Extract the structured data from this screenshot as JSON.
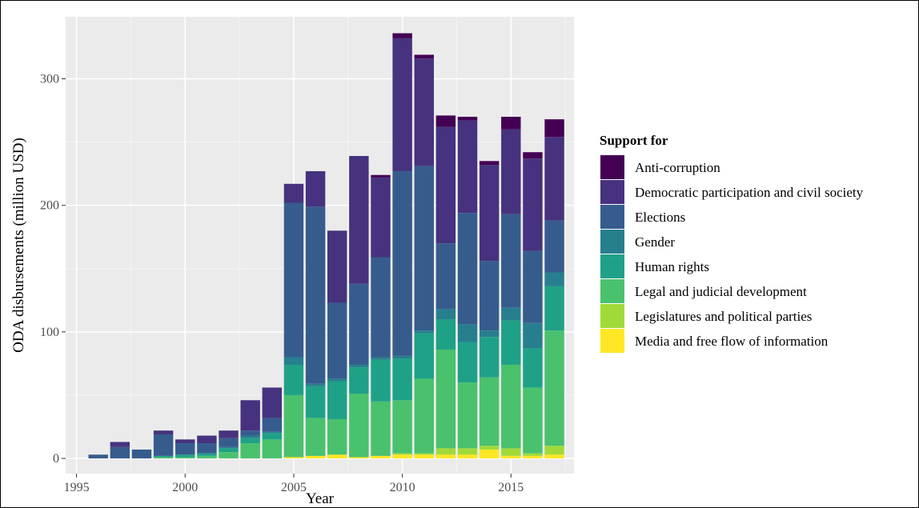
{
  "chart_data": {
    "type": "bar",
    "stacked": true,
    "xlabel": "Year",
    "ylabel": "ODA disbursements (million USD)",
    "x_ticks": [
      1995,
      2000,
      2005,
      2010,
      2015
    ],
    "y_ticks": [
      0,
      100,
      200,
      300
    ],
    "xlim": [
      1994.5,
      2017.9
    ],
    "ylim": [
      -12,
      349
    ],
    "grid": true,
    "panel_background": "#ebebeb",
    "legend": {
      "title": "Support for",
      "placement": "right"
    },
    "categories": [
      1996,
      1997,
      1998,
      1999,
      2000,
      2001,
      2002,
      2003,
      2004,
      2005,
      2006,
      2007,
      2008,
      2009,
      2010,
      2011,
      2012,
      2013,
      2014,
      2015,
      2016,
      2017
    ],
    "series": [
      {
        "name": "Media and free flow of information",
        "color": "#fde725",
        "values": [
          0,
          0,
          0,
          0,
          0,
          0,
          0,
          0,
          0,
          1,
          2,
          3,
          1,
          2,
          3,
          3,
          3,
          3,
          7,
          2,
          2,
          3
        ]
      },
      {
        "name": "Legislatures and political parties",
        "color": "#a0da39",
        "values": [
          0,
          0,
          0,
          0,
          0,
          0,
          0,
          0,
          0,
          0,
          0,
          0,
          0,
          0,
          1,
          1,
          5,
          5,
          3,
          6,
          2,
          7
        ]
      },
      {
        "name": "Legal and judicial development",
        "color": "#4ac16d",
        "values": [
          0,
          0,
          0,
          1,
          1,
          2,
          5,
          12,
          15,
          49,
          30,
          28,
          50,
          43,
          42,
          59,
          78,
          52,
          54,
          66,
          52,
          91
        ]
      },
      {
        "name": "Human rights",
        "color": "#1fa187",
        "values": [
          0,
          0,
          0,
          1,
          2,
          2,
          3,
          4,
          5,
          24,
          25,
          30,
          21,
          33,
          33,
          36,
          24,
          32,
          32,
          35,
          31,
          35
        ]
      },
      {
        "name": "Gender",
        "color": "#277f8e",
        "values": [
          0,
          0,
          0,
          0,
          0,
          0,
          1,
          2,
          1,
          6,
          2,
          2,
          2,
          2,
          2,
          2,
          8,
          14,
          5,
          10,
          20,
          11
        ]
      },
      {
        "name": "Elections",
        "color": "#365c8d",
        "values": [
          3,
          9,
          7,
          17,
          9,
          8,
          7,
          4,
          11,
          122,
          140,
          60,
          64,
          79,
          146,
          130,
          52,
          88,
          55,
          74,
          57,
          41
        ]
      },
      {
        "name": "Democratic participation and civil society",
        "color": "#46327e",
        "values": [
          0,
          4,
          0,
          3,
          3,
          6,
          6,
          24,
          24,
          15,
          28,
          57,
          101,
          63,
          105,
          85,
          92,
          73,
          76,
          67,
          73,
          66
        ]
      },
      {
        "name": "Anti-corruption",
        "color": "#440154",
        "values": [
          0,
          0,
          0,
          0,
          0,
          0,
          0,
          0,
          0,
          0,
          0,
          0,
          0,
          2,
          4,
          3,
          9,
          3,
          3,
          10,
          5,
          14
        ]
      }
    ]
  }
}
